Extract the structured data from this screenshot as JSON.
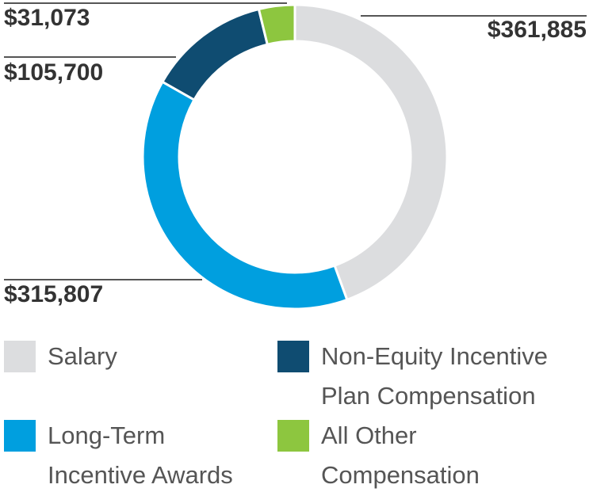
{
  "chart_data": {
    "type": "donut",
    "categories": [
      "Salary",
      "Long-Term Incentive Awards",
      "Non-Equity Incentive Plan Compensation",
      "All Other Compensation"
    ],
    "values": [
      361885,
      315807,
      105700,
      31073
    ],
    "value_labels": [
      "$361,885",
      "$315,807",
      "$105,700",
      "$31,073"
    ],
    "colors": [
      "#dcdddf",
      "#009fdf",
      "#0f4c71",
      "#8dc63f"
    ]
  }
}
